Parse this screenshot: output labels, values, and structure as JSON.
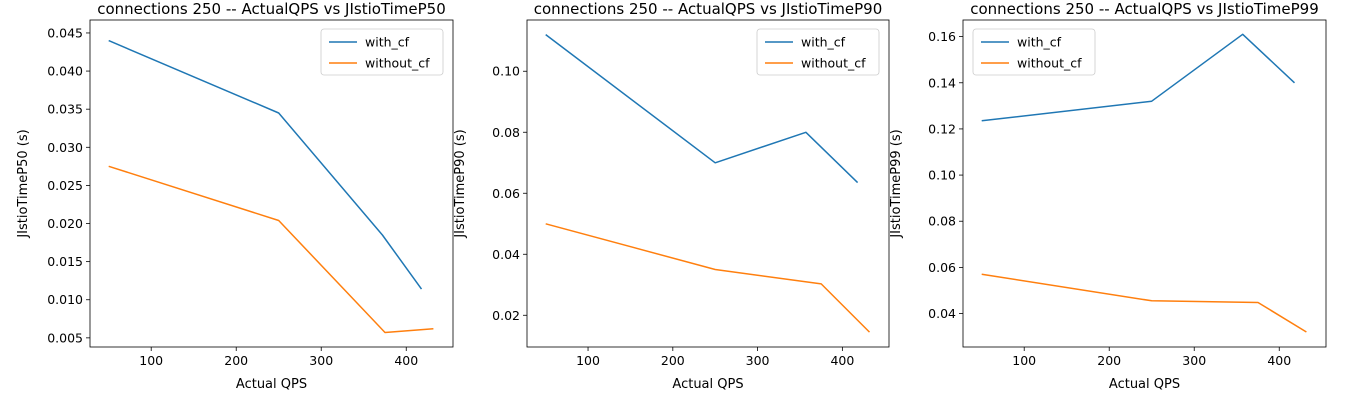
{
  "chart_data": [
    {
      "type": "line",
      "title": "connections 250 -- ActualQPS vs JIstioTimeP50",
      "xlabel": "Actual QPS",
      "ylabel": "JIstioTimeP50 (s)",
      "xlim": [
        28,
        455
      ],
      "ylim": [
        0.0038,
        0.0467
      ],
      "xticks": [
        "100",
        "200",
        "300",
        "400"
      ],
      "yticks": [
        "0.005",
        "0.010",
        "0.015",
        "0.020",
        "0.025",
        "0.030",
        "0.035",
        "0.040",
        "0.045"
      ],
      "grid": false,
      "legend_position": "top-right",
      "series": [
        {
          "name": "with_cf",
          "color": "#1f77b4",
          "x": [
            50,
            250,
            372,
            418
          ],
          "y": [
            0.044,
            0.0345,
            0.0185,
            0.0114
          ]
        },
        {
          "name": "without_cf",
          "color": "#ff7f0e",
          "x": [
            50,
            250,
            375,
            432
          ],
          "y": [
            0.0275,
            0.0204,
            0.0057,
            0.0062
          ]
        }
      ]
    },
    {
      "type": "line",
      "title": "connections 250 -- ActualQPS vs JIstioTimeP90",
      "xlabel": "Actual QPS",
      "ylabel": "JIstioTimeP90 (s)",
      "xlim": [
        28,
        455
      ],
      "ylim": [
        0.0096,
        0.1168
      ],
      "xticks": [
        "100",
        "200",
        "300",
        "400"
      ],
      "yticks": [
        "0.02",
        "0.04",
        "0.06",
        "0.08",
        "0.10"
      ],
      "grid": false,
      "legend_position": "top-right",
      "series": [
        {
          "name": "with_cf",
          "color": "#1f77b4",
          "x": [
            50,
            250,
            357,
            418
          ],
          "y": [
            0.112,
            0.07,
            0.08,
            0.0635
          ]
        },
        {
          "name": "without_cf",
          "color": "#ff7f0e",
          "x": [
            50,
            250,
            375,
            432
          ],
          "y": [
            0.05,
            0.035,
            0.0303,
            0.0145
          ]
        }
      ]
    },
    {
      "type": "line",
      "title": "connections 250 -- ActualQPS vs JIstioTimeP99",
      "xlabel": "Actual QPS",
      "ylabel": "JIstioTimeP99 (s)",
      "xlim": [
        28,
        455
      ],
      "ylim": [
        0.0255,
        0.1672
      ],
      "xticks": [
        "100",
        "200",
        "300",
        "400"
      ],
      "yticks": [
        "0.04",
        "0.06",
        "0.08",
        "0.10",
        "0.12",
        "0.14",
        "0.16"
      ],
      "grid": false,
      "legend_position": "top-left",
      "series": [
        {
          "name": "with_cf",
          "color": "#1f77b4",
          "x": [
            50,
            250,
            357,
            418
          ],
          "y": [
            0.1235,
            0.132,
            0.161,
            0.14
          ]
        },
        {
          "name": "without_cf",
          "color": "#ff7f0e",
          "x": [
            50,
            250,
            375,
            432
          ],
          "y": [
            0.057,
            0.0455,
            0.0448,
            0.032
          ]
        }
      ]
    }
  ]
}
